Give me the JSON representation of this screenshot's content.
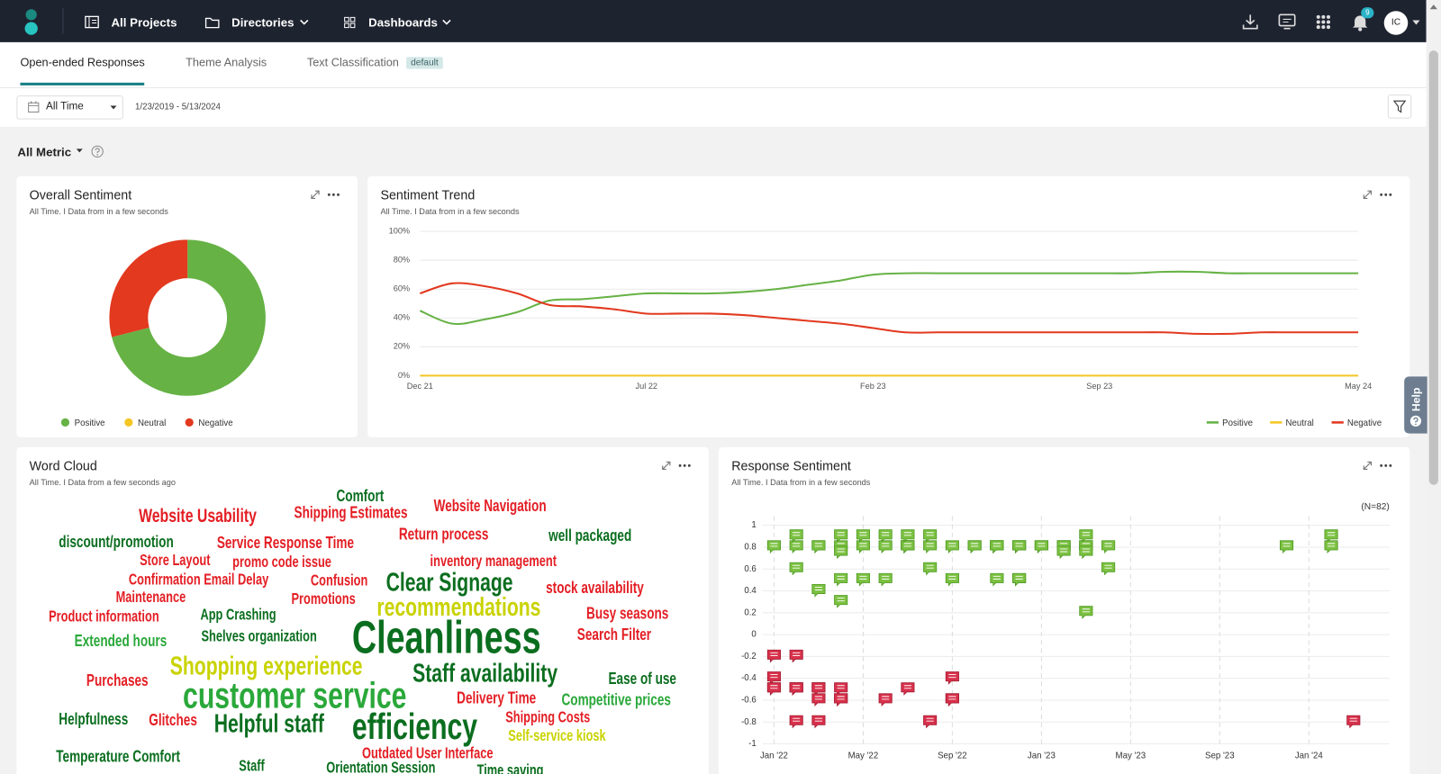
{
  "nav": {
    "items": [
      "All Projects",
      "Directories",
      "Dashboards"
    ],
    "notification_count": 9,
    "avatar": "IC"
  },
  "tabs": {
    "items": [
      "Open-ended Responses",
      "Theme Analysis",
      "Text Classification"
    ],
    "badge": "default"
  },
  "filter": {
    "range": "All Time",
    "dates": "1/23/2019 - 5/13/2024"
  },
  "metric": "All Metric",
  "help": "Help",
  "chart_data": [
    {
      "type": "donut",
      "title": "Overall Sentiment",
      "subtitle": "All Time. I Data from in a few seconds",
      "categories": [
        "Positive",
        "Neutral",
        "Negative"
      ],
      "values": [
        71,
        0,
        29
      ],
      "colors": [
        "#66b245",
        "#f4c623",
        "#e2391f"
      ]
    },
    {
      "type": "line",
      "title": "Sentiment Trend",
      "subtitle": "All Time. I Data from in a few seconds",
      "categories": [
        "Dec 21",
        null,
        null,
        null,
        null,
        null,
        null,
        "Jul 22",
        null,
        null,
        null,
        null,
        null,
        null,
        "Feb 23",
        null,
        null,
        null,
        null,
        null,
        null,
        "Sep 23",
        null,
        null,
        null,
        null,
        null,
        null,
        null,
        "May 24"
      ],
      "series": [
        {
          "name": "Positive",
          "color": "#66b245",
          "values": [
            45,
            36,
            39,
            44,
            52,
            53,
            55,
            57,
            57,
            57,
            58,
            60,
            63,
            66,
            70,
            71,
            71,
            71,
            71,
            71,
            71,
            71,
            71,
            72,
            72,
            71,
            71,
            71,
            71,
            71
          ]
        },
        {
          "name": "Neutral",
          "color": "#f4c623",
          "values": [
            0,
            0,
            0,
            0,
            0,
            0,
            0,
            0,
            0,
            0,
            0,
            0,
            0,
            0,
            0,
            0,
            0,
            0,
            0,
            0,
            0,
            0,
            0,
            0,
            0,
            0,
            0,
            0,
            0,
            0
          ]
        },
        {
          "name": "Negative",
          "color": "#e2391f",
          "values": [
            57,
            64,
            62,
            57,
            49,
            48,
            46,
            43,
            43,
            43,
            42,
            40,
            38,
            36,
            33,
            30,
            30,
            30,
            30,
            30,
            30,
            30,
            30,
            30,
            29,
            29,
            30,
            30,
            30,
            30
          ]
        }
      ],
      "ylim": [
        0,
        100
      ],
      "yticks": [
        {
          "value": 0,
          "label": "0%"
        },
        {
          "value": 20,
          "label": "20%"
        },
        {
          "value": 40,
          "label": "40%"
        },
        {
          "value": 60,
          "label": "60%"
        },
        {
          "value": 80,
          "label": "80%"
        },
        {
          "value": 100,
          "label": "100%"
        }
      ],
      "grid": true,
      "legend": "bottom-right"
    },
    {
      "type": "wordcloud",
      "title": "Word Cloud",
      "subtitle": "All Time. I Data from a few seconds ago",
      "words": [
        {
          "text": "Comfort",
          "color": "#0b6e1f"
        },
        {
          "text": "Website Usability",
          "color": "#e31e24"
        },
        {
          "text": "Shipping Estimates",
          "color": "#e31e24"
        },
        {
          "text": "Website Navigation",
          "color": "#e31e24"
        },
        {
          "text": "discount/promotion",
          "color": "#0b6e1f"
        },
        {
          "text": "Service Response Time",
          "color": "#e31e24"
        },
        {
          "text": "Return process",
          "color": "#e31e24"
        },
        {
          "text": "well packaged",
          "color": "#0b6e1f"
        },
        {
          "text": "Store Layout",
          "color": "#e31e24"
        },
        {
          "text": "promo code issue",
          "color": "#e31e24"
        },
        {
          "text": "inventory management",
          "color": "#e31e24"
        },
        {
          "text": "Confirmation Email Delay",
          "color": "#e31e24"
        },
        {
          "text": "Confusion",
          "color": "#e31e24"
        },
        {
          "text": "Clear Signage",
          "color": "#0b6e1f"
        },
        {
          "text": "stock availability",
          "color": "#e31e24"
        },
        {
          "text": "Maintenance",
          "color": "#e31e24"
        },
        {
          "text": "Promotions",
          "color": "#e31e24"
        },
        {
          "text": "recommendations",
          "color": "#c9d300"
        },
        {
          "text": "Product information",
          "color": "#e31e24"
        },
        {
          "text": "App Crashing",
          "color": "#0b6e1f"
        },
        {
          "text": "Busy seasons",
          "color": "#e31e24"
        },
        {
          "text": "Cleanliness",
          "color": "#0b6e1f"
        },
        {
          "text": "Extended hours",
          "color": "#2aa83a"
        },
        {
          "text": "Shelves organization",
          "color": "#0b6e1f"
        },
        {
          "text": "Search Filter",
          "color": "#e31e24"
        },
        {
          "text": "Shopping experience",
          "color": "#c9d300"
        },
        {
          "text": "Staff availability",
          "color": "#0b6e1f"
        },
        {
          "text": "Ease of use",
          "color": "#0b6e1f"
        },
        {
          "text": "Purchases",
          "color": "#e31e24"
        },
        {
          "text": "customer service",
          "color": "#2aa83a"
        },
        {
          "text": "Delivery Time",
          "color": "#e31e24"
        },
        {
          "text": "Competitive prices",
          "color": "#2aa83a"
        },
        {
          "text": "Helpfulness",
          "color": "#0b6e1f"
        },
        {
          "text": "Glitches",
          "color": "#e31e24"
        },
        {
          "text": "Helpful staff",
          "color": "#0b6e1f"
        },
        {
          "text": "efficiency",
          "color": "#0b6e1f"
        },
        {
          "text": "Shipping Costs",
          "color": "#e31e24"
        },
        {
          "text": "Self-service kiosk",
          "color": "#c9d300"
        },
        {
          "text": "Temperature Comfort",
          "color": "#0b6e1f"
        },
        {
          "text": "Outdated User Interface",
          "color": "#e31e24"
        },
        {
          "text": "Staff",
          "color": "#0b6e1f"
        },
        {
          "text": "Orientation Session",
          "color": "#0b6e1f"
        },
        {
          "text": "Time saving",
          "color": "#0b6e1f"
        }
      ]
    },
    {
      "type": "scatter",
      "title": "Response Sentiment",
      "subtitle": "All Time. I Data from in a few seconds",
      "annotation": "(N=82)",
      "x": [
        "2022-01",
        "2022-02",
        "2022-03",
        "2022-04",
        "2022-05",
        "2022-06",
        "2022-07",
        "2022-07",
        "2022-07",
        "2022-07",
        "2022-08",
        "2022-09",
        "2022-10",
        "2022-11",
        "2022-11",
        "2022-11",
        "2022-12",
        "2022-12",
        "2023-01",
        "2023-02",
        "2023-02",
        "2023-03",
        "2023-03",
        "2023-04",
        "2023-12",
        "2024-02",
        "2022-07",
        "2022-11",
        "2023-01",
        "2023-03",
        "2023-02",
        "2022-12",
        "2022-10",
        "2022-03",
        "2022-02",
        "2022-04",
        "2022-05",
        "2022-06",
        "2022-07",
        "2022-08",
        "2023-03",
        "2024-02",
        "2022-04",
        "2023-02",
        "2023-03",
        "2022-02",
        "2022-08",
        "2023-04",
        "2022-04",
        "2022-05",
        "2022-06",
        "2022-09",
        "2022-11",
        "2022-12",
        "2022-12",
        "2022-03",
        "2022-04",
        "2023-03",
        "2022-01",
        "2022-02",
        "2022-01",
        "2022-09",
        "2022-01",
        "2022-01",
        "2022-02",
        "2022-02",
        "2022-02",
        "2022-03",
        "2022-03",
        "2022-03",
        "2022-04",
        "2022-07",
        "2022-03",
        "2022-04",
        "2022-04",
        "2022-06",
        "2022-09",
        "2022-09",
        "2022-02",
        "2022-03",
        "2022-08",
        "2024-03"
      ],
      "y": [
        0.8,
        0.8,
        0.8,
        0.8,
        0.8,
        0.8,
        0.8,
        0.8,
        0.8,
        0.8,
        0.8,
        0.8,
        0.8,
        0.8,
        0.8,
        0.8,
        0.8,
        0.8,
        0.8,
        0.8,
        0.8,
        0.8,
        0.8,
        0.8,
        0.8,
        0.8,
        0.8,
        0.8,
        0.8,
        0.8,
        0.8,
        0.8,
        0.8,
        0.8,
        0.9,
        0.9,
        0.9,
        0.9,
        0.9,
        0.9,
        0.9,
        0.9,
        0.75,
        0.75,
        0.75,
        0.6,
        0.6,
        0.6,
        0.5,
        0.5,
        0.5,
        0.5,
        0.5,
        0.5,
        0.5,
        0.4,
        0.3,
        0.2,
        -0.2,
        -0.2,
        -0.4,
        -0.4,
        -0.5,
        -0.5,
        -0.5,
        -0.5,
        -0.5,
        -0.5,
        -0.5,
        -0.5,
        -0.5,
        -0.5,
        -0.6,
        -0.6,
        -0.6,
        -0.6,
        -0.6,
        -0.6,
        -0.8,
        -0.8,
        -0.8,
        -0.8
      ],
      "xlim": [
        "2021-12",
        "2024-04"
      ],
      "xticks": [
        {
          "value": "2022-01",
          "label": "Jan '22"
        },
        {
          "value": "2022-05",
          "label": "May '22"
        },
        {
          "value": "2022-09",
          "label": "Sep '22"
        },
        {
          "value": "2023-01",
          "label": "Jan '23"
        },
        {
          "value": "2023-05",
          "label": "May '23"
        },
        {
          "value": "2023-09",
          "label": "Sep '23"
        },
        {
          "value": "2024-01",
          "label": "Jan '24"
        }
      ],
      "ylim": [
        -1,
        1
      ],
      "yticks": [
        1,
        0.8,
        0.6,
        0.4,
        0.2,
        0,
        -0.2,
        -0.4,
        -0.6,
        -0.8,
        -1
      ],
      "grid": true,
      "positive_color": "#7cc142",
      "negative_color": "#d8304b"
    }
  ]
}
